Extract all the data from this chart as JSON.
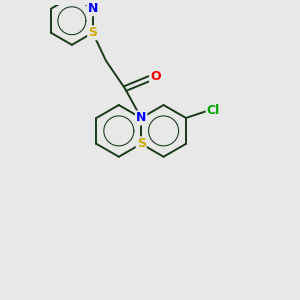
{
  "background_color": "#e8e8e8",
  "atom_colors": {
    "N": "#0000ff",
    "S": "#ccaa00",
    "O": "#ff0000",
    "Cl": "#00aa00",
    "C": "#1a3a1a"
  },
  "bond_color": "#1a3a1a",
  "bond_width": 1.4,
  "fig_size": [
    3.0,
    3.0
  ],
  "dpi": 100,
  "xlim": [
    0,
    10
  ],
  "ylim": [
    0,
    10
  ]
}
